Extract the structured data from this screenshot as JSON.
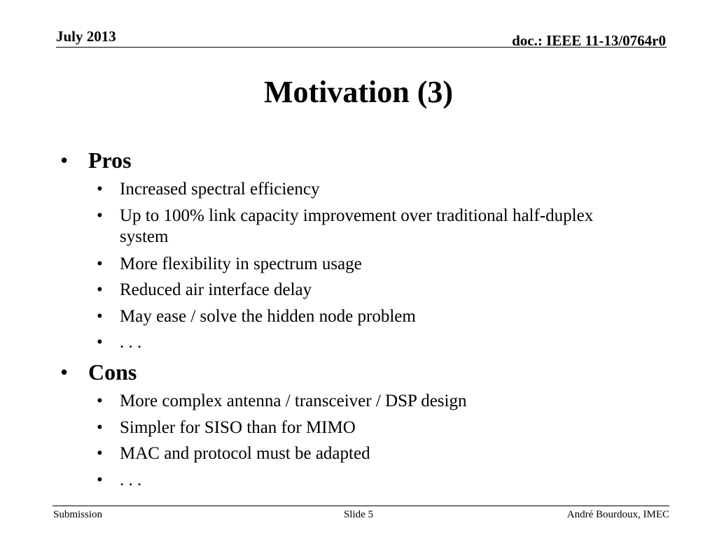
{
  "header": {
    "date": "July 2013",
    "doc_id": "doc.: IEEE 11-13/0764r0"
  },
  "slide": {
    "title": "Motivation (3)",
    "bullet_glyph": "•",
    "sections": [
      {
        "heading": "Pros",
        "items": [
          "Increased spectral efficiency",
          "Up to 100% link capacity improvement over traditional half-duplex system",
          "More flexibility in spectrum usage",
          "Reduced air interface delay",
          "May ease / solve the hidden node problem",
          ". . ."
        ]
      },
      {
        "heading": "Cons",
        "items": [
          "More complex antenna / transceiver / DSP design",
          "Simpler for SISO than for MIMO",
          "MAC and protocol must be adapted",
          ". . ."
        ]
      }
    ]
  },
  "footer": {
    "left": "Submission",
    "center": "Slide 5",
    "right": "André Bourdoux, IMEC"
  }
}
